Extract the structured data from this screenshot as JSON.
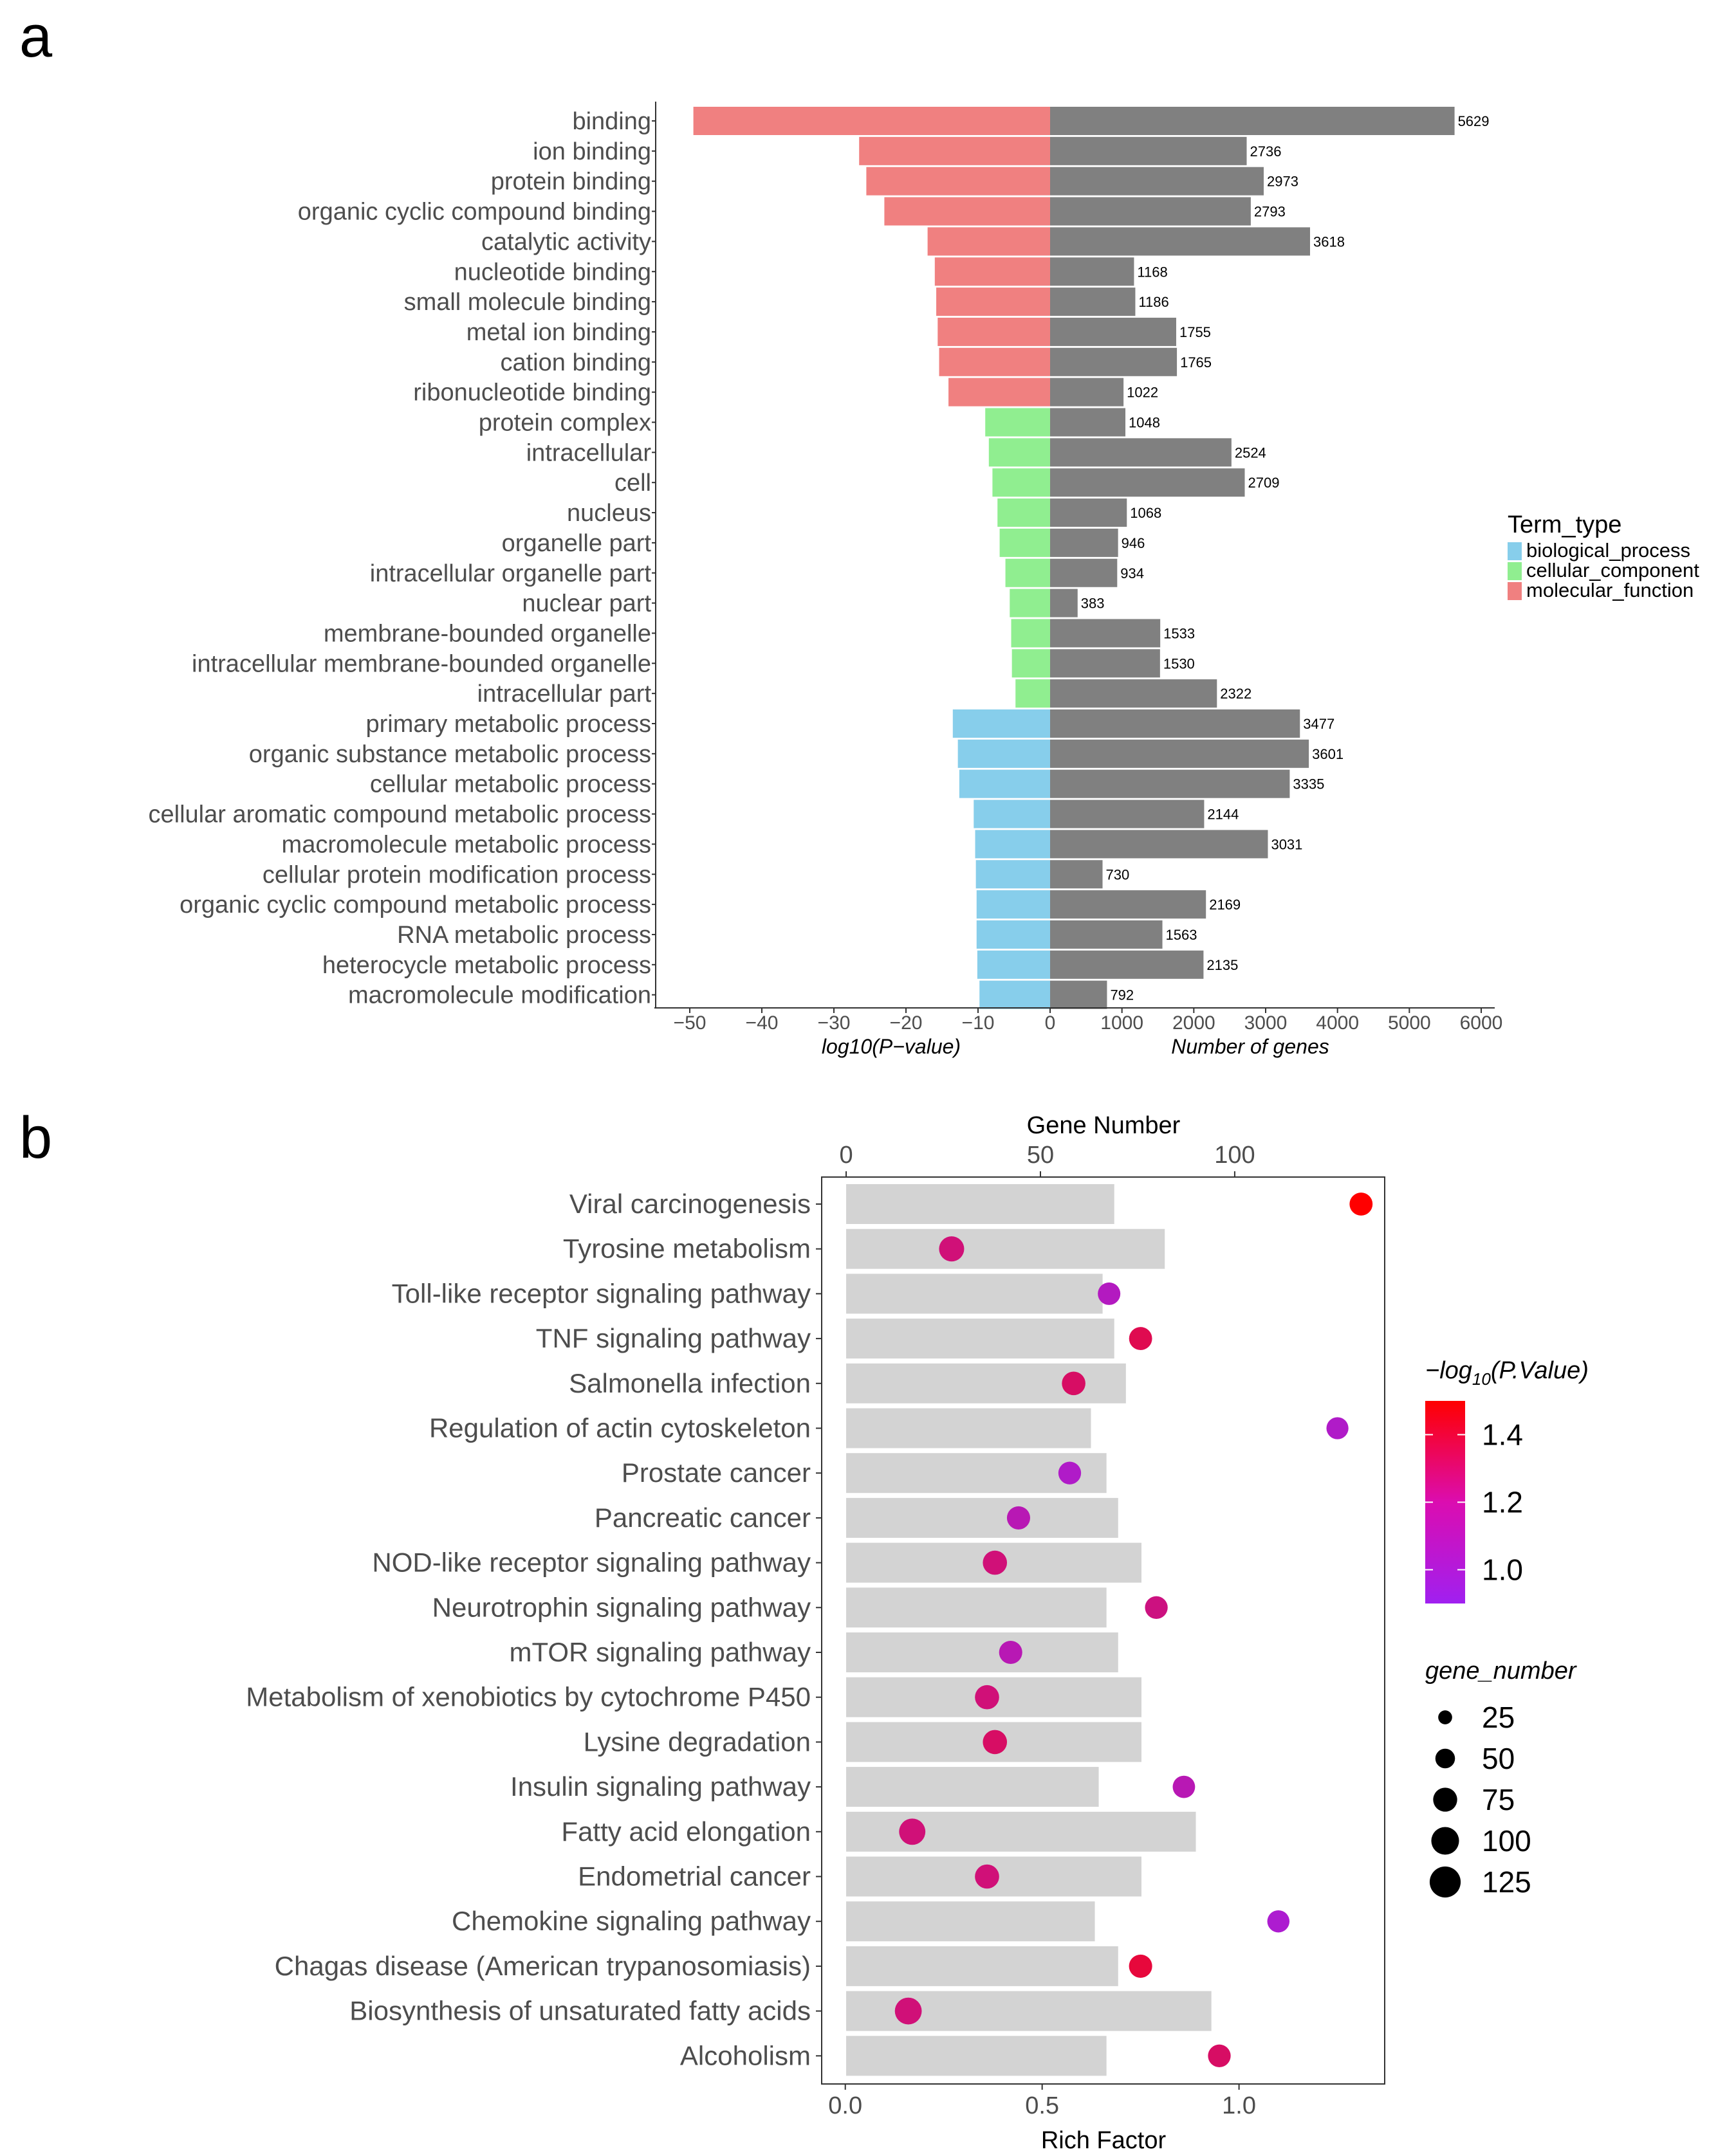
{
  "panels": {
    "a": "a",
    "b": "b"
  },
  "chart_data": [
    {
      "id": "panel_a",
      "type": "bar",
      "left_axis_label": "log10(P−value)",
      "right_axis_label": "Number of genes",
      "x_ticks_left": [
        -50,
        -40,
        -30,
        -20,
        -10,
        0
      ],
      "x_ticks_left_labels": [
        "−50",
        "−40",
        "−30",
        "−20",
        "−10",
        "0"
      ],
      "x_ticks_right": [
        1000,
        2000,
        3000,
        4000,
        5000,
        6000
      ],
      "xlim_left": [
        -55,
        0
      ],
      "xlim_right": [
        0,
        6000
      ],
      "legend": {
        "title": "Term_type",
        "position": "right",
        "items": [
          {
            "label": "biological_process",
            "color": "#87CEEB"
          },
          {
            "label": "cellular_component",
            "color": "#90EE90"
          },
          {
            "label": "molecular_function",
            "color": "#F08080"
          }
        ]
      },
      "gene_bar_color": "#808080",
      "terms": [
        {
          "name": "binding",
          "type": "molecular_function",
          "log10p": -49.5,
          "genes": 5629
        },
        {
          "name": "ion binding",
          "type": "molecular_function",
          "log10p": -26.5,
          "genes": 2736
        },
        {
          "name": "protein binding",
          "type": "molecular_function",
          "log10p": -25.5,
          "genes": 2973
        },
        {
          "name": "organic cyclic compound binding",
          "type": "molecular_function",
          "log10p": -23.0,
          "genes": 2793
        },
        {
          "name": "catalytic activity",
          "type": "molecular_function",
          "log10p": -17.0,
          "genes": 3618
        },
        {
          "name": "nucleotide binding",
          "type": "molecular_function",
          "log10p": -16.0,
          "genes": 1168
        },
        {
          "name": "small molecule binding",
          "type": "molecular_function",
          "log10p": -15.8,
          "genes": 1186
        },
        {
          "name": "metal ion binding",
          "type": "molecular_function",
          "log10p": -15.6,
          "genes": 1755
        },
        {
          "name": "cation binding",
          "type": "molecular_function",
          "log10p": -15.4,
          "genes": 1765
        },
        {
          "name": "ribonucleotide binding",
          "type": "molecular_function",
          "log10p": -14.1,
          "genes": 1022
        },
        {
          "name": "protein complex",
          "type": "cellular_component",
          "log10p": -9.0,
          "genes": 1048
        },
        {
          "name": "intracellular",
          "type": "cellular_component",
          "log10p": -8.5,
          "genes": 2524
        },
        {
          "name": "cell",
          "type": "cellular_component",
          "log10p": -8.0,
          "genes": 2709
        },
        {
          "name": "nucleus",
          "type": "cellular_component",
          "log10p": -7.3,
          "genes": 1068
        },
        {
          "name": "organelle part",
          "type": "cellular_component",
          "log10p": -7.0,
          "genes": 946
        },
        {
          "name": "intracellular organelle part",
          "type": "cellular_component",
          "log10p": -6.2,
          "genes": 934
        },
        {
          "name": "nuclear part",
          "type": "cellular_component",
          "log10p": -5.6,
          "genes": 383
        },
        {
          "name": "membrane-bounded organelle",
          "type": "cellular_component",
          "log10p": -5.4,
          "genes": 1533
        },
        {
          "name": "intracellular membrane-bounded organelle",
          "type": "cellular_component",
          "log10p": -5.3,
          "genes": 1530
        },
        {
          "name": "intracellular part",
          "type": "cellular_component",
          "log10p": -4.8,
          "genes": 2322
        },
        {
          "name": "primary metabolic process",
          "type": "biological_process",
          "log10p": -13.5,
          "genes": 3477
        },
        {
          "name": "organic substance metabolic process",
          "type": "biological_process",
          "log10p": -12.8,
          "genes": 3601
        },
        {
          "name": "cellular metabolic process",
          "type": "biological_process",
          "log10p": -12.6,
          "genes": 3335
        },
        {
          "name": "cellular aromatic compound metabolic process",
          "type": "biological_process",
          "log10p": -10.6,
          "genes": 2144
        },
        {
          "name": "macromolecule metabolic process",
          "type": "biological_process",
          "log10p": -10.4,
          "genes": 3031
        },
        {
          "name": "cellular protein modification process",
          "type": "biological_process",
          "log10p": -10.3,
          "genes": 730
        },
        {
          "name": "organic cyclic compound metabolic process",
          "type": "biological_process",
          "log10p": -10.2,
          "genes": 2169
        },
        {
          "name": "RNA metabolic process",
          "type": "biological_process",
          "log10p": -10.2,
          "genes": 1563
        },
        {
          "name": "heterocycle metabolic process",
          "type": "biological_process",
          "log10p": -10.1,
          "genes": 2135
        },
        {
          "name": "macromolecule modification",
          "type": "biological_process",
          "log10p": -9.8,
          "genes": 792
        }
      ]
    },
    {
      "id": "panel_b",
      "type": "scatter",
      "xlabel": "Rich Factor",
      "top_xlabel": "Gene Number",
      "x_ticks": [
        0.0,
        0.5,
        1.0
      ],
      "x_tick_labels": [
        "0.0",
        "0.5",
        "1.0"
      ],
      "top_ticks": [
        0,
        50,
        100
      ],
      "xlim": [
        -0.06,
        1.37
      ],
      "top_xlim": [
        -6.3,
        138.6
      ],
      "bar_color": "#D3D3D3",
      "color_scale": {
        "low": "#A020F0",
        "high": "#FF0000",
        "min": 0.9,
        "max": 1.5
      },
      "color_legend": {
        "title": "−log",
        "title_sub": "10",
        "title_end": "(P.Value)",
        "ticks": [
          1.4,
          1.2,
          1.0
        ],
        "tick_labels": [
          "1.4",
          "1.2",
          "1.0"
        ]
      },
      "size_legend": {
        "title": "gene_number",
        "values": [
          25,
          50,
          75,
          100,
          125
        ],
        "labels": [
          "25",
          "50",
          "75",
          "100",
          "125"
        ]
      },
      "pathways": [
        {
          "name": "Viral carcinogenesis",
          "gene_number": 69,
          "rich_factor": 1.31,
          "neg_log10_p": 1.52
        },
        {
          "name": "Tyrosine metabolism",
          "gene_number": 82,
          "rich_factor": 0.27,
          "neg_log10_p": 1.2
        },
        {
          "name": "Toll-like receptor signaling pathway",
          "gene_number": 66,
          "rich_factor": 0.67,
          "neg_log10_p": 1.02
        },
        {
          "name": "TNF signaling pathway",
          "gene_number": 69,
          "rich_factor": 0.75,
          "neg_log10_p": 1.3
        },
        {
          "name": "Salmonella infection",
          "gene_number": 72,
          "rich_factor": 0.58,
          "neg_log10_p": 1.25
        },
        {
          "name": "Regulation of actin cytoskeleton",
          "gene_number": 63,
          "rich_factor": 1.25,
          "neg_log10_p": 1.0
        },
        {
          "name": "Prostate cancer",
          "gene_number": 67,
          "rich_factor": 0.57,
          "neg_log10_p": 1.0
        },
        {
          "name": "Pancreatic cancer",
          "gene_number": 70,
          "rich_factor": 0.44,
          "neg_log10_p": 1.05
        },
        {
          "name": "NOD-like receptor signaling pathway",
          "gene_number": 76,
          "rich_factor": 0.38,
          "neg_log10_p": 1.2
        },
        {
          "name": "Neurotrophin signaling pathway",
          "gene_number": 67,
          "rich_factor": 0.79,
          "neg_log10_p": 1.18
        },
        {
          "name": "mTOR signaling pathway",
          "gene_number": 70,
          "rich_factor": 0.42,
          "neg_log10_p": 1.05
        },
        {
          "name": "Metabolism of xenobiotics by cytochrome P450",
          "gene_number": 76,
          "rich_factor": 0.36,
          "neg_log10_p": 1.2
        },
        {
          "name": "Lysine degradation",
          "gene_number": 76,
          "rich_factor": 0.38,
          "neg_log10_p": 1.25
        },
        {
          "name": "Insulin signaling pathway",
          "gene_number": 65,
          "rich_factor": 0.86,
          "neg_log10_p": 1.05
        },
        {
          "name": "Fatty acid elongation",
          "gene_number": 90,
          "rich_factor": 0.17,
          "neg_log10_p": 1.2
        },
        {
          "name": "Endometrial cancer",
          "gene_number": 76,
          "rich_factor": 0.36,
          "neg_log10_p": 1.2
        },
        {
          "name": "Chemokine signaling pathway",
          "gene_number": 64,
          "rich_factor": 1.1,
          "neg_log10_p": 0.98
        },
        {
          "name": "Chagas disease (American trypanosomiasis)",
          "gene_number": 70,
          "rich_factor": 0.75,
          "neg_log10_p": 1.35
        },
        {
          "name": "Biosynthesis of unsaturated fatty acids",
          "gene_number": 94,
          "rich_factor": 0.16,
          "neg_log10_p": 1.2
        },
        {
          "name": "Alcoholism",
          "gene_number": 67,
          "rich_factor": 0.95,
          "neg_log10_p": 1.25
        }
      ]
    }
  ]
}
